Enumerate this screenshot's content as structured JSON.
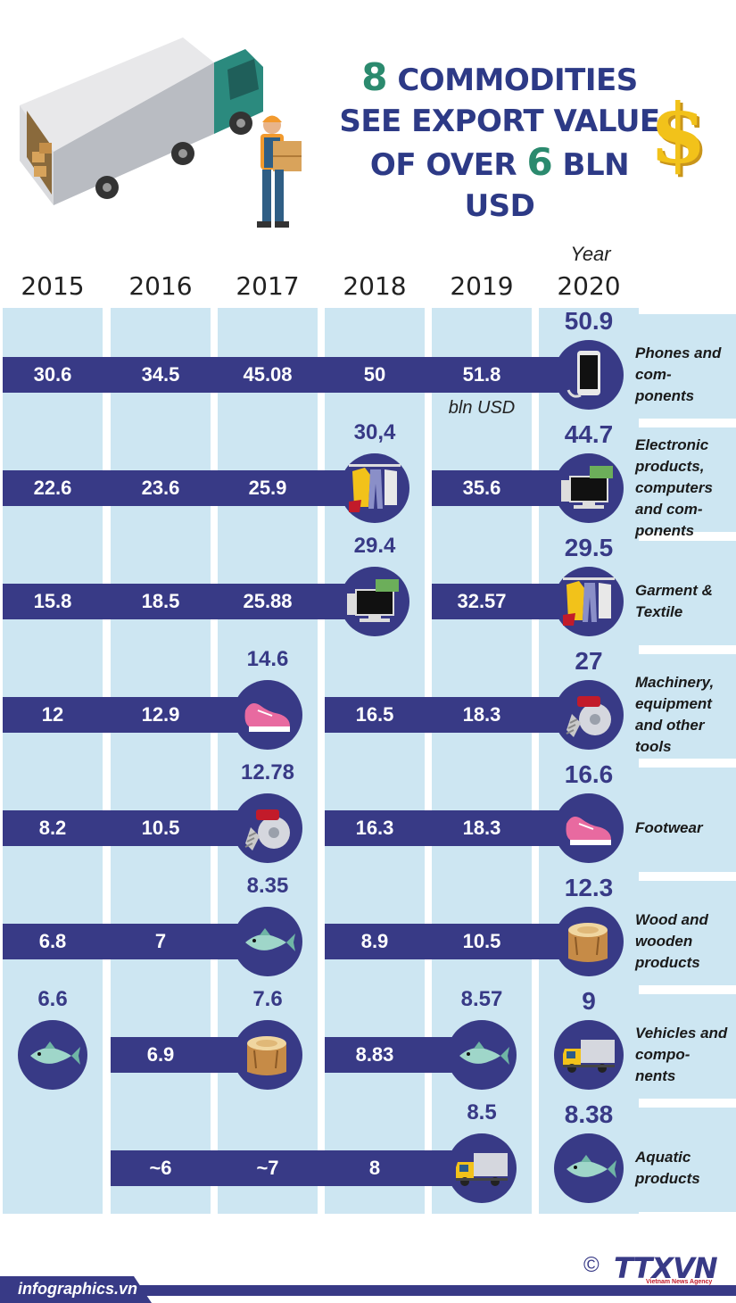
{
  "title": {
    "line1_num": "8",
    "line1_text": "COMMODITIES",
    "line2": "SEE EXPORT VALUE",
    "line3_pre": "OF OVER",
    "line3_num": "6",
    "line3_post": "BLN USD"
  },
  "year_caption": "Year",
  "years": [
    "2015",
    "2016",
    "2017",
    "2018",
    "2019",
    "2020"
  ],
  "unit_label": "bln USD",
  "chart_data": {
    "type": "table",
    "columns": [
      "2015",
      "2016",
      "2017",
      "2018",
      "2019",
      "2020"
    ],
    "unit": "bln USD",
    "rows": [
      {
        "label": "Phones and com- ponents",
        "cells": [
          "30.6",
          "34.5",
          "45.08",
          "50",
          "51.8",
          "50.9"
        ],
        "icons": [
          null,
          null,
          null,
          null,
          null,
          "phone-icon"
        ]
      },
      {
        "label": "Electronic products, computers and com- ponents",
        "cells": [
          "22.6",
          "23.6",
          "25.9",
          "30,4",
          "35.6",
          "44.7"
        ],
        "icons": [
          null,
          null,
          null,
          "garment-icon",
          null,
          "computer-icon"
        ]
      },
      {
        "label": "Garment & Textile",
        "cells": [
          "15.8",
          "18.5",
          "25.88",
          "29.4",
          "32.57",
          "29.5"
        ],
        "icons": [
          null,
          null,
          null,
          "computer-icon",
          null,
          "garment-icon"
        ]
      },
      {
        "label": "Machinery, equipment and other tools",
        "cells": [
          "12",
          "12.9",
          "14.6",
          "16.5",
          "18.3",
          "27"
        ],
        "icons": [
          null,
          null,
          "shoe-icon",
          null,
          null,
          "machinery-icon"
        ]
      },
      {
        "label": "Footwear",
        "cells": [
          "8.2",
          "10.5",
          "12.78",
          "16.3",
          "18.3",
          "16.6"
        ],
        "icons": [
          null,
          null,
          "machinery-icon",
          null,
          null,
          "shoe-icon"
        ]
      },
      {
        "label": "Wood and wooden products",
        "cells": [
          "6.8",
          "7",
          "8.35",
          "8.9",
          "10.5",
          "12.3"
        ],
        "icons": [
          null,
          null,
          "fish-icon",
          null,
          null,
          "wood-icon"
        ]
      },
      {
        "label": "Vehicles and compo- nents",
        "cells": [
          "6.6",
          "6.9",
          "7.6",
          "8.83",
          "8.57",
          "9"
        ],
        "icons": [
          "fish-icon",
          null,
          "wood-icon",
          null,
          "fish-icon",
          "truck-icon"
        ]
      },
      {
        "label": "Aquatic products",
        "cells": [
          "",
          "~6",
          "~7",
          "8",
          "8.5",
          "8.38"
        ],
        "icons": [
          null,
          null,
          null,
          null,
          "truck-icon",
          "fish-icon"
        ]
      }
    ]
  },
  "copyright": "©",
  "logo_text": "TTXVN",
  "logo_sub": "Vietnam News Agency",
  "footer_brand": "infographics.vn",
  "colors": {
    "navy": "#383a86",
    "lightblue": "#cde6f2",
    "green": "#2b8a6e",
    "gold": "#f2c21a"
  }
}
